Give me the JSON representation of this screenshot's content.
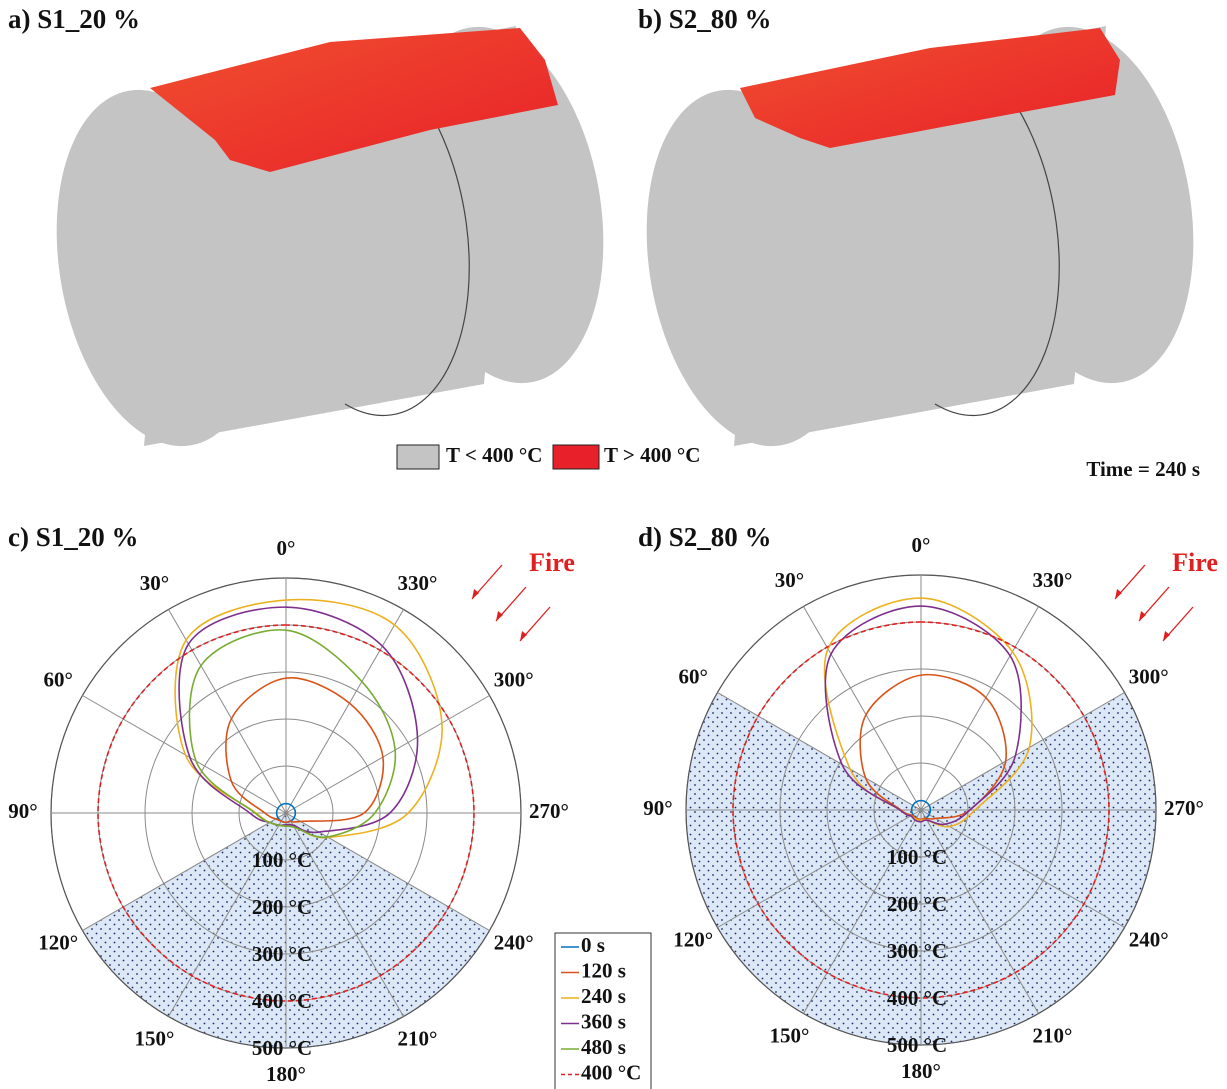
{
  "panels": [
    {
      "title": "a) S1_20 %"
    },
    {
      "title": "b) S2_80 %"
    }
  ],
  "render_legend": [
    {
      "label": "T < 400 °C",
      "color": "#c4c4c4"
    },
    {
      "label": "T > 400 °C",
      "color": "#e8202a"
    }
  ],
  "time_label": "Time = 240 s",
  "chart_data": [
    {
      "type": "polar",
      "title": "c) S1_20 %",
      "annotation": "Fire",
      "theta": [
        0,
        30,
        60,
        90,
        120,
        150,
        180,
        210,
        240,
        270,
        300,
        330
      ],
      "thetaticks": [
        {
          "value": 0,
          "label": "0°"
        },
        {
          "value": 30,
          "label": "30°"
        },
        {
          "value": 60,
          "label": "60°"
        },
        {
          "value": 90,
          "label": "90°"
        },
        {
          "value": 120,
          "label": "120°"
        },
        {
          "value": 150,
          "label": "150°"
        },
        {
          "value": 180,
          "label": "180°"
        },
        {
          "value": 210,
          "label": "210°"
        },
        {
          "value": 240,
          "label": "240°"
        },
        {
          "value": 270,
          "label": "270°"
        },
        {
          "value": 300,
          "label": "300°"
        },
        {
          "value": 330,
          "label": "330°"
        }
      ],
      "rlim": [
        0,
        500
      ],
      "rticks": [
        {
          "value": 100,
          "label": "100 °C"
        },
        {
          "value": 200,
          "label": "200 °C"
        },
        {
          "value": 300,
          "label": "300 °C"
        },
        {
          "value": 400,
          "label": "400 °C"
        },
        {
          "value": 500,
          "label": "500 °C"
        }
      ],
      "shaded": [
        120,
        240
      ],
      "legend": "lower right",
      "series": [
        {
          "name": "0 s",
          "color": "#0072bd",
          "values": [
            20,
            20,
            20,
            20,
            20,
            20,
            20,
            20,
            20,
            20,
            20,
            20
          ]
        },
        {
          "name": "120 s",
          "color": "#d95319",
          "values": [
            287,
            232,
            134,
            45,
            25,
            20,
            20,
            20,
            36,
            166,
            238,
            270
          ]
        },
        {
          "name": "240 s",
          "color": "#edb120",
          "values": [
            453,
            425,
            247,
            64,
            40,
            30,
            28,
            30,
            104,
            260,
            383,
            462
          ]
        },
        {
          "name": "360 s",
          "color": "#7e2f8e",
          "values": [
            438,
            415,
            236,
            77,
            40,
            30,
            25,
            30,
            81,
            221,
            323,
            410
          ]
        },
        {
          "name": "480 s",
          "color": "#77ac30",
          "values": [
            389,
            362,
            221,
            66,
            40,
            30,
            28,
            35,
            102,
            189,
            268,
            323
          ]
        },
        {
          "name": "400 °C",
          "color": "#e02020",
          "dashed": true,
          "values": [
            400,
            400,
            400,
            400,
            400,
            400,
            400,
            400,
            400,
            400,
            400,
            400
          ]
        }
      ]
    },
    {
      "type": "polar",
      "title": "d) S2_80 %",
      "annotation": "Fire",
      "theta": [
        0,
        30,
        60,
        90,
        120,
        150,
        180,
        210,
        240,
        270,
        300,
        330
      ],
      "thetaticks": [
        {
          "value": 0,
          "label": "0°"
        },
        {
          "value": 30,
          "label": "30°"
        },
        {
          "value": 60,
          "label": "60°"
        },
        {
          "value": 90,
          "label": "90°"
        },
        {
          "value": 120,
          "label": "120°"
        },
        {
          "value": 150,
          "label": "150°"
        },
        {
          "value": 180,
          "label": "180°"
        },
        {
          "value": 210,
          "label": "210°"
        },
        {
          "value": 240,
          "label": "240°"
        },
        {
          "value": 270,
          "label": "270°"
        },
        {
          "value": 300,
          "label": "300°"
        },
        {
          "value": 330,
          "label": "330°"
        }
      ],
      "rlim": [
        0,
        500
      ],
      "rticks": [
        {
          "value": 100,
          "label": "100 °C"
        },
        {
          "value": 200,
          "label": "200 °C"
        },
        {
          "value": 300,
          "label": "300 °C"
        },
        {
          "value": 400,
          "label": "400 °C"
        },
        {
          "value": 500,
          "label": "500 °C"
        }
      ],
      "shaded": [
        60,
        300
      ],
      "series": [
        {
          "name": "0 s",
          "color": "#0072bd",
          "values": [
            20,
            20,
            20,
            20,
            20,
            20,
            20,
            20,
            20,
            20,
            20,
            20
          ]
        },
        {
          "name": "120 s",
          "color": "#d95319",
          "values": [
            287,
            234,
            136,
            43,
            22,
            20,
            20,
            20,
            36,
            104,
            208,
            276
          ]
        },
        {
          "name": "240 s",
          "color": "#edb120",
          "values": [
            451,
            396,
            174,
            45,
            25,
            22,
            22,
            25,
            70,
            115,
            266,
            389
          ]
        },
        {
          "name": "360 s",
          "color": "#7e2f8e",
          "values": [
            434,
            383,
            194,
            45,
            25,
            25,
            25,
            25,
            60,
            104,
            232,
            379
          ]
        },
        {
          "name": "400 °C",
          "color": "#e02020",
          "dashed": true,
          "values": [
            400,
            400,
            400,
            400,
            400,
            400,
            400,
            400,
            400,
            400,
            400,
            400
          ]
        }
      ]
    }
  ]
}
